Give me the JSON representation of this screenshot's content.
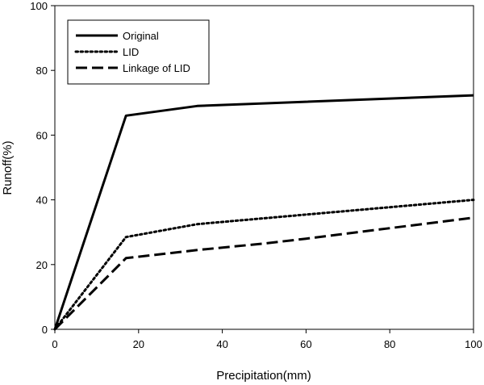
{
  "chart_data": {
    "type": "line",
    "title": "",
    "xlabel": "Precipitation(mm)",
    "ylabel": "Runoff(%)",
    "xlim": [
      0,
      100
    ],
    "ylim": [
      0,
      100
    ],
    "xticks": [
      0,
      20,
      40,
      60,
      80,
      100
    ],
    "yticks": [
      0,
      20,
      40,
      60,
      80,
      100
    ],
    "grid": false,
    "legend_position": "top-left",
    "series": [
      {
        "name": "Original",
        "style": "solid",
        "color": "#000000",
        "x": [
          0,
          17,
          34,
          100
        ],
        "y": [
          0,
          66,
          69,
          72.3
        ]
      },
      {
        "name": "LID",
        "style": "dotted",
        "color": "#000000",
        "x": [
          0,
          17,
          34,
          100
        ],
        "y": [
          0,
          28.5,
          32.5,
          40
        ]
      },
      {
        "name": "Linkage of LID",
        "style": "dashed",
        "color": "#000000",
        "x": [
          0,
          17,
          34,
          50,
          60,
          100
        ],
        "y": [
          0,
          22,
          24.5,
          26.5,
          28,
          34.5
        ]
      }
    ]
  }
}
